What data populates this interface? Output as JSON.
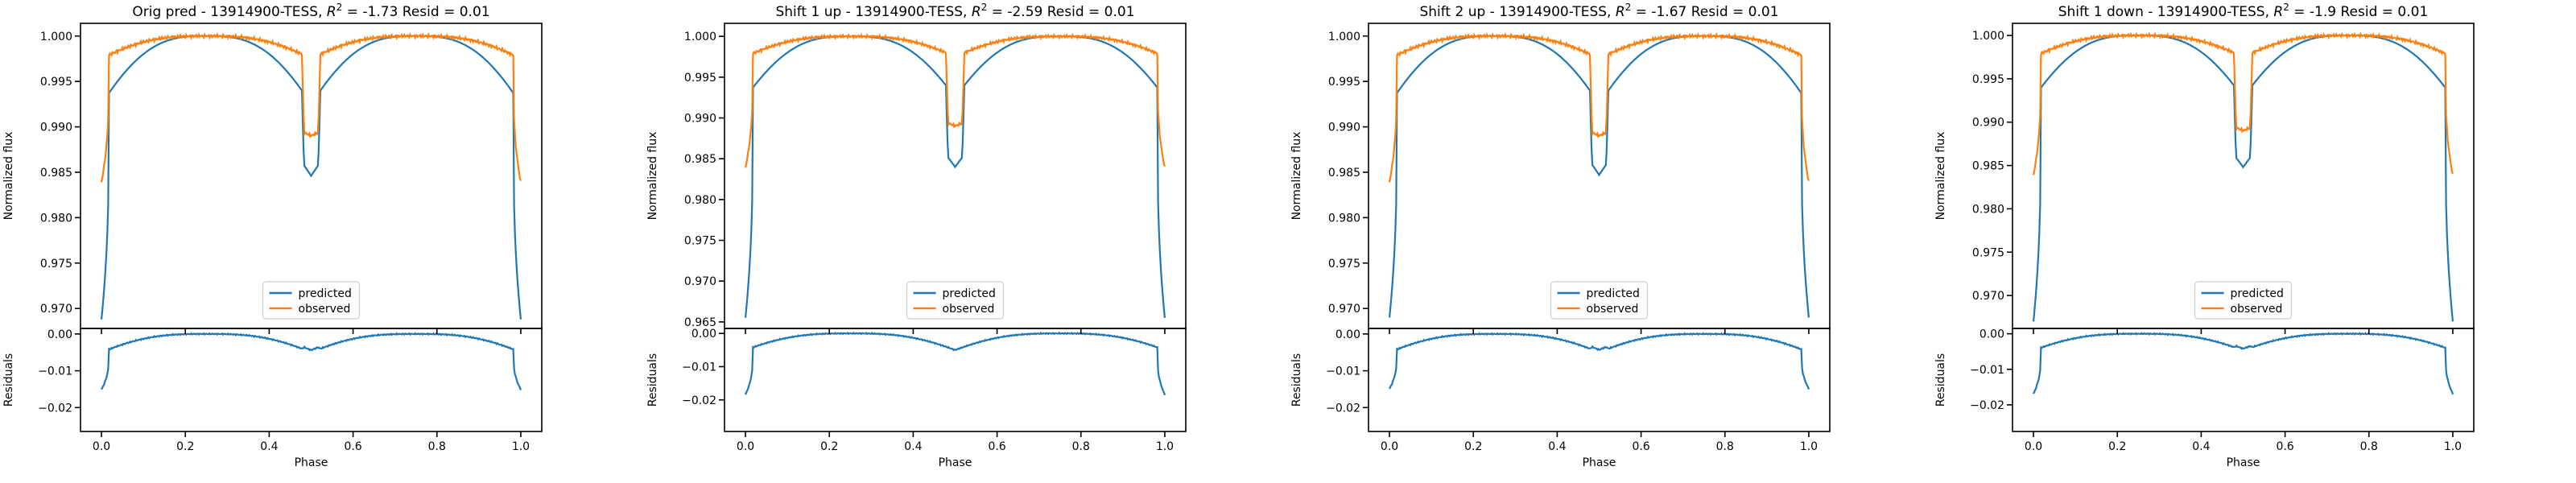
{
  "chart_data": [
    {
      "type": "line",
      "title": "Orig pred - 13914900-TESS, $R^2=$-1.73 Resid = 0.01",
      "title_parts": {
        "before": "Orig pred - 13914900-TESS, ",
        "r": "R",
        "sup": "2",
        "after": " = -1.73 Resid = 0.01"
      },
      "xlabel": "Phase",
      "ylabel": "Normalized flux",
      "resid_ylabel": "Residuals",
      "xlim": [
        -0.05,
        1.05
      ],
      "ylim": [
        0.9678,
        1.0014
      ],
      "yticks": [
        0.97,
        0.975,
        0.98,
        0.985,
        0.99,
        0.995,
        1.0
      ],
      "ytick_labels": [
        "0.970",
        "0.975",
        "0.980",
        "0.985",
        "0.990",
        "0.995",
        "1.000"
      ],
      "xticks": [
        0.0,
        0.2,
        0.4,
        0.6,
        0.8,
        1.0
      ],
      "xtick_labels": [
        "0.0",
        "0.2",
        "0.4",
        "0.6",
        "0.8",
        "1.0"
      ],
      "resid_ylim": [
        -0.0265,
        0.0015
      ],
      "resid_yticks": [
        0.0,
        -0.01,
        -0.02
      ],
      "resid_ytick_labels": [
        "0.00",
        "−0.01",
        "−0.02"
      ],
      "predicted_params": {
        "ecl_depth": 0.0312,
        "plateau_drop": 0.0075,
        "sec_depth": 0.0149,
        "sec_drop": 0.007
      },
      "observed_params": {
        "ecl_depth": 0.0161,
        "plateau_drop": 0.0025,
        "sec_depth": 0.011,
        "sec_drop": 0.0025
      },
      "legend": {
        "loc": "lower center",
        "entries": [
          "predicted",
          "observed"
        ]
      },
      "series_colors": {
        "predicted": "#1f77b4",
        "observed": "#ff7f0e"
      }
    },
    {
      "type": "line",
      "title": "Shift 1 up - 13914900-TESS, $R^2=$-2.59 Resid = 0.01",
      "title_parts": {
        "before": "Shift 1 up - 13914900-TESS, ",
        "r": "R",
        "sup": "2",
        "after": " = -2.59 Resid = 0.01"
      },
      "xlabel": "Phase",
      "ylabel": "Normalized flux",
      "resid_ylabel": "Residuals",
      "xlim": [
        -0.05,
        1.05
      ],
      "ylim": [
        0.9642,
        1.0016
      ],
      "yticks": [
        0.965,
        0.97,
        0.975,
        0.98,
        0.985,
        0.99,
        0.995,
        1.0
      ],
      "ytick_labels": [
        "0.965",
        "0.970",
        "0.975",
        "0.980",
        "0.985",
        "0.990",
        "0.995",
        "1.000"
      ],
      "xticks": [
        0.0,
        0.2,
        0.4,
        0.6,
        0.8,
        1.0
      ],
      "xtick_labels": [
        "0.0",
        "0.2",
        "0.4",
        "0.6",
        "0.8",
        "1.0"
      ],
      "resid_ylim": [
        -0.0295,
        0.0015
      ],
      "resid_yticks": [
        0.0,
        -0.01,
        -0.02
      ],
      "resid_ytick_labels": [
        "0.00",
        "−0.01",
        "−0.02"
      ],
      "predicted_params": {
        "ecl_depth": 0.0345,
        "plateau_drop": 0.0075,
        "sec_depth": 0.0155,
        "sec_drop": 0.007
      },
      "observed_params": {
        "ecl_depth": 0.0161,
        "plateau_drop": 0.0025,
        "sec_depth": 0.011,
        "sec_drop": 0.0025
      },
      "legend": {
        "loc": "lower center",
        "entries": [
          "predicted",
          "observed"
        ]
      },
      "series_colors": {
        "predicted": "#1f77b4",
        "observed": "#ff7f0e"
      }
    },
    {
      "type": "line",
      "title": "Shift 2 up - 13914900-TESS, $R^2=$-1.67 Resid = 0.01",
      "title_parts": {
        "before": "Shift 2 up - 13914900-TESS, ",
        "r": "R",
        "sup": "2",
        "after": " = -1.67 Resid = 0.01"
      },
      "xlabel": "Phase",
      "ylabel": "Normalized flux",
      "resid_ylabel": "Residuals",
      "xlim": [
        -0.05,
        1.05
      ],
      "ylim": [
        0.9678,
        1.0014
      ],
      "yticks": [
        0.97,
        0.975,
        0.98,
        0.985,
        0.99,
        0.995,
        1.0
      ],
      "ytick_labels": [
        "0.970",
        "0.975",
        "0.980",
        "0.985",
        "0.990",
        "0.995",
        "1.000"
      ],
      "xticks": [
        0.0,
        0.2,
        0.4,
        0.6,
        0.8,
        1.0
      ],
      "xtick_labels": [
        "0.0",
        "0.2",
        "0.4",
        "0.6",
        "0.8",
        "1.0"
      ],
      "resid_ylim": [
        -0.0265,
        0.0015
      ],
      "resid_yticks": [
        0.0,
        -0.01,
        -0.02
      ],
      "resid_ytick_labels": [
        "0.00",
        "−0.01",
        "−0.02"
      ],
      "predicted_params": {
        "ecl_depth": 0.031,
        "plateau_drop": 0.0075,
        "sec_depth": 0.0148,
        "sec_drop": 0.007
      },
      "observed_params": {
        "ecl_depth": 0.0161,
        "plateau_drop": 0.0025,
        "sec_depth": 0.011,
        "sec_drop": 0.0025
      },
      "legend": {
        "loc": "lower center",
        "entries": [
          "predicted",
          "observed"
        ]
      },
      "series_colors": {
        "predicted": "#1f77b4",
        "observed": "#ff7f0e"
      }
    },
    {
      "type": "line",
      "title": "Shift 1 down - 13914900-TESS, $R^2=$-1.9 Resid = 0.01",
      "title_parts": {
        "before": "Shift 1 down - 13914900-TESS, ",
        "r": "R",
        "sup": "2",
        "after": " = -1.9 Resid = 0.01"
      },
      "xlabel": "Phase",
      "ylabel": "Normalized flux",
      "resid_ylabel": "Residuals",
      "xlim": [
        -0.05,
        1.05
      ],
      "ylim": [
        0.9662,
        1.0014
      ],
      "yticks": [
        0.97,
        0.975,
        0.98,
        0.985,
        0.99,
        0.995,
        1.0
      ],
      "ytick_labels": [
        "0.970",
        "0.975",
        "0.980",
        "0.985",
        "0.990",
        "0.995",
        "1.000"
      ],
      "xticks": [
        0.0,
        0.2,
        0.4,
        0.6,
        0.8,
        1.0
      ],
      "xtick_labels": [
        "0.0",
        "0.2",
        "0.4",
        "0.6",
        "0.8",
        "1.0"
      ],
      "resid_ylim": [
        -0.0275,
        0.0015
      ],
      "resid_yticks": [
        0.0,
        -0.01,
        -0.02
      ],
      "resid_ytick_labels": [
        "0.00",
        "−0.01",
        "−0.02"
      ],
      "predicted_params": {
        "ecl_depth": 0.033,
        "plateau_drop": 0.0072,
        "sec_depth": 0.015,
        "sec_drop": 0.007
      },
      "observed_params": {
        "ecl_depth": 0.0161,
        "plateau_drop": 0.0025,
        "sec_depth": 0.011,
        "sec_drop": 0.0025
      },
      "legend": {
        "loc": "lower center",
        "entries": [
          "predicted",
          "observed"
        ]
      },
      "series_colors": {
        "predicted": "#1f77b4",
        "observed": "#ff7f0e"
      }
    }
  ]
}
